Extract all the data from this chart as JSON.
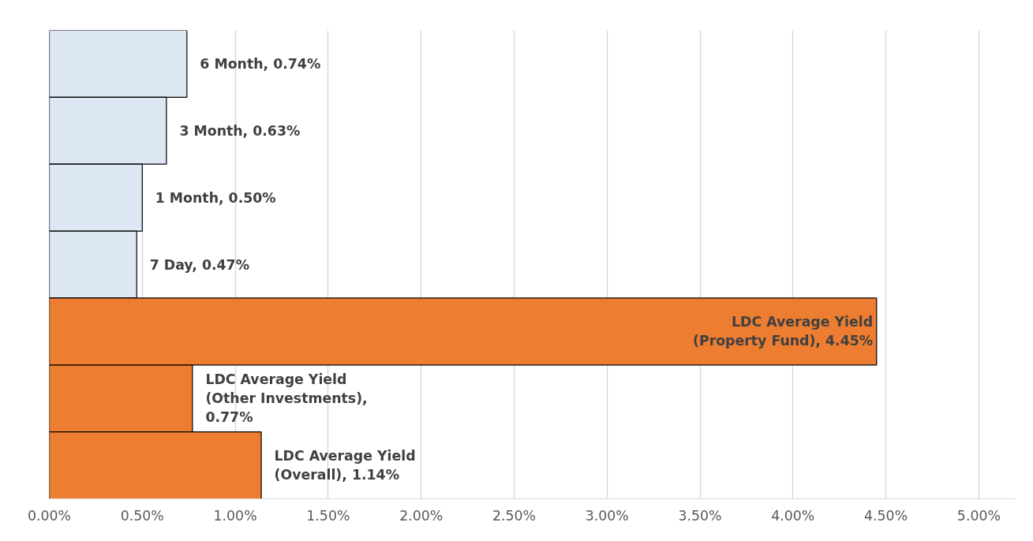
{
  "chart_data": {
    "type": "bar",
    "orientation": "horizontal",
    "categories": [
      null,
      null,
      null,
      null,
      null,
      null,
      null
    ],
    "values": [
      0.74,
      0.63,
      0.5,
      0.47,
      4.45,
      0.77,
      1.14
    ],
    "colors": [
      "#dee8f5",
      "#dee8f5",
      "#dee8f5",
      "#dee8f5",
      "#ed7d31",
      "#ed7d31",
      "#ed7d31"
    ],
    "value_labels": [
      "6 Month, 0.74%",
      "3 Month, 0.63%",
      "1 Month, 0.50%",
      "7 Day, 0.47%",
      "LDC Average Yield\n(Property Fund), 4.45%",
      "LDC Average Yield\n(Other Investments),\n0.77%",
      "LDC Average Yield\n(Overall), 1.14%"
    ],
    "xlim": [
      0,
      5.2
    ],
    "xticks": [
      {
        "value": 0,
        "label": "0.00%"
      },
      {
        "value": 0.5,
        "label": "0.50%"
      },
      {
        "value": 1,
        "label": "1.00%"
      },
      {
        "value": 1.5,
        "label": "1.50%"
      },
      {
        "value": 2,
        "label": "2.00%"
      },
      {
        "value": 2.5,
        "label": "2.50%"
      },
      {
        "value": 3,
        "label": "3.00%"
      },
      {
        "value": 3.5,
        "label": "3.50%"
      },
      {
        "value": 4,
        "label": "4.00%"
      },
      {
        "value": 4.5,
        "label": "4.50%"
      },
      {
        "value": 5,
        "label": "5.00%"
      }
    ],
    "grid": "x",
    "tick_labels": "x"
  }
}
